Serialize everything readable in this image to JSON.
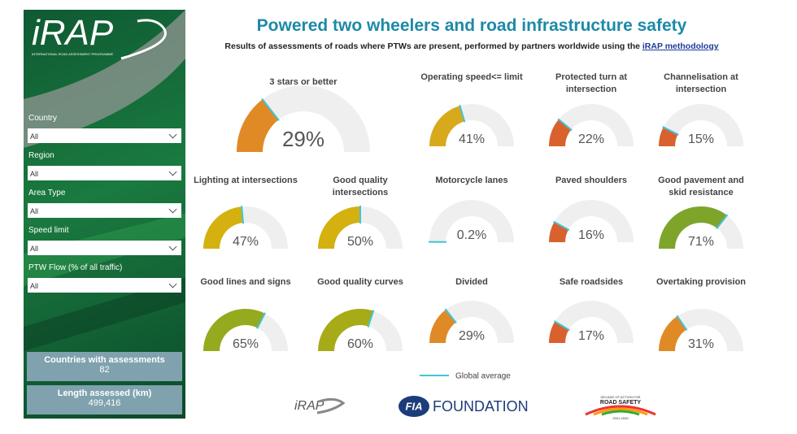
{
  "chart_data": {
    "type": "gauge",
    "title": "Powered two wheelers and road infrastructure safety",
    "subtitle": "Results of assessments of roads where PTWs are present, performed by partners worldwide using the",
    "subtitle_link": "iRAP methodology",
    "categories": [
      "3 stars or better",
      "Operating speed<= limit",
      "Protected turn at intersection",
      "Channelisation at intersection",
      "Lighting at intersections",
      "Good quality intersections",
      "Motorcycle lanes",
      "Paved shoulders",
      "Good pavement and skid resistance",
      "Good lines and signs",
      "Good quality curves",
      "Divided",
      "Safe roadsides",
      "Overtaking provision"
    ],
    "values": [
      29,
      41,
      22,
      15,
      47,
      50,
      0.2,
      16,
      71,
      65,
      60,
      29,
      17,
      31
    ],
    "value_labels": [
      "29%",
      "41%",
      "22%",
      "15%",
      "47%",
      "50%",
      "0.2%",
      "16%",
      "71%",
      "65%",
      "60%",
      "29%",
      "17%",
      "31%"
    ],
    "colors": [
      "#e08a26",
      "#d9a91c",
      "#d9612e",
      "#d9612e",
      "#d4b10f",
      "#d4b10f",
      "#3ec5d8",
      "#d9612e",
      "#7ea52a",
      "#95aa1f",
      "#a8ab18",
      "#e08a26",
      "#d9612e",
      "#e08a26"
    ],
    "ylim": [
      0,
      100
    ],
    "legend": "Global average",
    "marker_color": "#3ec5d8"
  },
  "sidebar": {
    "logo": "iRAP",
    "logo_sub": "INTERNATIONAL ROAD ASSESSMENT PROGRAMME",
    "filters": [
      {
        "label": "Country",
        "value": "All"
      },
      {
        "label": "Region",
        "value": "All"
      },
      {
        "label": "Area Type",
        "value": "All"
      },
      {
        "label": "Speed limit",
        "value": "All"
      },
      {
        "label": "PTW Flow (% of all traffic)",
        "value": "All"
      }
    ],
    "stats": [
      {
        "label": "Countries with assessments",
        "value": "82"
      },
      {
        "label": "Length assessed (km)",
        "value": "499,416"
      }
    ]
  },
  "footer": {
    "irap": "iRAP",
    "fia": "FIA",
    "foundation": "FOUNDATION",
    "decade": "DECADE OF ACTION FOR",
    "road_safety": "ROAD SAFETY",
    "years": "2021-2030"
  }
}
